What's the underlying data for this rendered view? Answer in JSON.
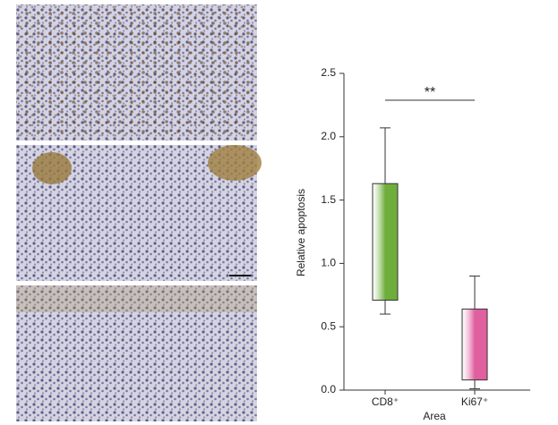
{
  "chart_data": {
    "type": "box",
    "y_label": "Relative apoptosis",
    "x_label": "Area",
    "categories": [
      "CD8⁺",
      "Ki67⁺"
    ],
    "boxes": [
      {
        "whisker_low": 0.6,
        "q1": 0.71,
        "q3": 1.63,
        "whisker_high": 2.07,
        "color": "#6fae3c"
      },
      {
        "whisker_low": 0.01,
        "q1": 0.08,
        "q3": 0.64,
        "whisker_high": 0.9,
        "color": "#e0609f"
      }
    ],
    "ylim": [
      0,
      2.5
    ],
    "yticks": [
      {
        "value": 0,
        "label": "0.0"
      },
      0.5,
      {
        "value": 1,
        "label": "1.0"
      },
      1.5,
      {
        "value": 2,
        "label": "2.0"
      },
      2.5
    ],
    "annotation": "**"
  }
}
